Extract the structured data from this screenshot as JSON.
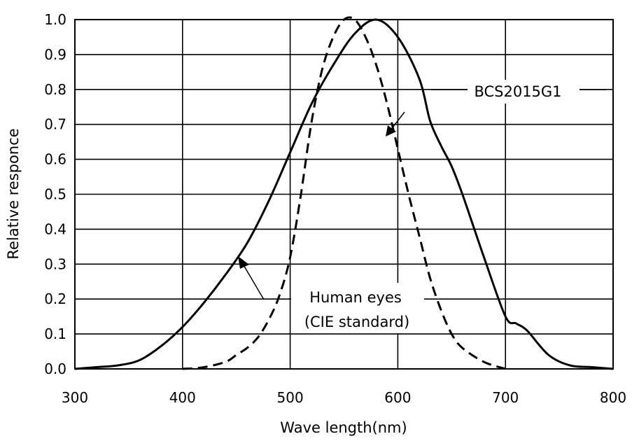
{
  "chart_data": {
    "type": "line",
    "title": "",
    "xlabel": "Wave length(nm)",
    "ylabel": "Relative responce",
    "xlim": [
      300,
      800
    ],
    "ylim": [
      0,
      1.0
    ],
    "xticks": [
      "300",
      "400",
      "500",
      "600",
      "700",
      "800"
    ],
    "yticks": [
      "0.0",
      "0.1",
      "0.2",
      "0.3",
      "0.4",
      "0.5",
      "0.6",
      "0.7",
      "0.8",
      "0.9",
      "1.0"
    ],
    "grid": true,
    "series": [
      {
        "name": "BCS2015G1",
        "style": "solid",
        "x": [
          300,
          320,
          340,
          360,
          380,
          400,
          420,
          440,
          460,
          480,
          500,
          520,
          540,
          560,
          580,
          600,
          620,
          630,
          640,
          650,
          660,
          680,
          700,
          710,
          720,
          740,
          760,
          780,
          800
        ],
        "y": [
          0.0,
          0.005,
          0.01,
          0.025,
          0.065,
          0.12,
          0.19,
          0.27,
          0.36,
          0.48,
          0.62,
          0.76,
          0.87,
          0.96,
          1.0,
          0.95,
          0.83,
          0.71,
          0.64,
          0.58,
          0.5,
          0.32,
          0.15,
          0.13,
          0.11,
          0.04,
          0.01,
          0.005,
          0.0
        ]
      },
      {
        "name": "Human eyes (CIE standard)",
        "style": "dashed",
        "x": [
          400,
          420,
          440,
          450,
          460,
          470,
          480,
          490,
          500,
          510,
          520,
          530,
          540,
          550,
          560,
          570,
          580,
          590,
          600,
          610,
          620,
          630,
          640,
          650,
          660,
          680,
          700
        ],
        "y": [
          0.0,
          0.005,
          0.02,
          0.04,
          0.06,
          0.09,
          0.14,
          0.21,
          0.32,
          0.5,
          0.71,
          0.86,
          0.95,
          1.0,
          1.0,
          0.95,
          0.87,
          0.76,
          0.63,
          0.5,
          0.38,
          0.26,
          0.17,
          0.1,
          0.06,
          0.02,
          0.0
        ]
      }
    ],
    "annotations": {
      "bcs_label": "BCS2015G1",
      "human_line1": "Human eyes",
      "human_line2": "(CIE standard)"
    }
  }
}
